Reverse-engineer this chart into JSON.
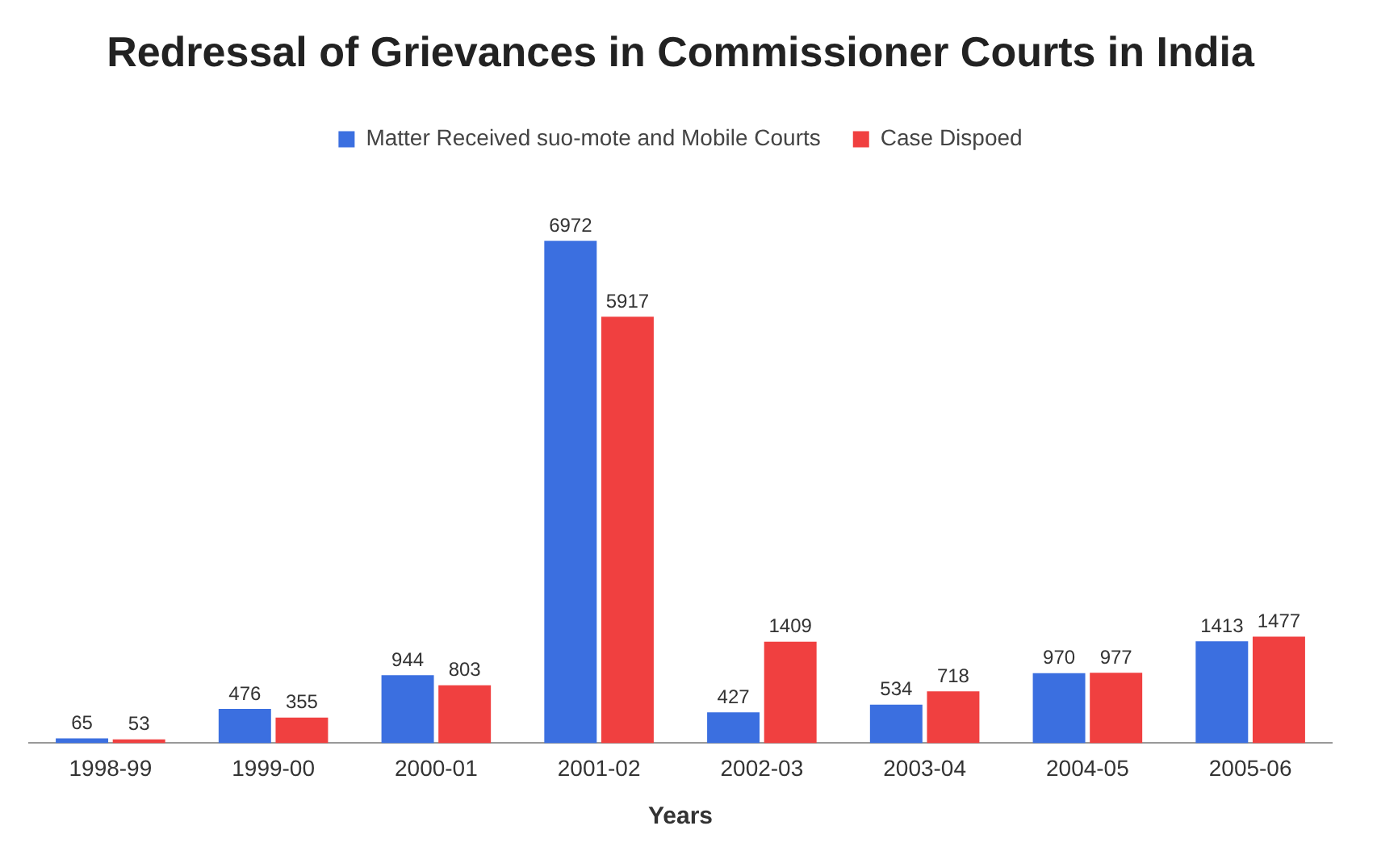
{
  "chart_data": {
    "type": "bar",
    "title": "Redressal of Grievances in Commissioner Courts in India",
    "xlabel": "Years",
    "categories": [
      "1998-99",
      "1999-00",
      "2000-01",
      "2001-02",
      "2002-03",
      "2003-04",
      "2004-05",
      "2005-06"
    ],
    "series": [
      {
        "name": "Matter Received suo-mote and Mobile Courts",
        "color": "#3b6fe0",
        "values": [
          65,
          476,
          944,
          6972,
          427,
          534,
          970,
          1413
        ]
      },
      {
        "name": "Case Dispoed",
        "color": "#f04040",
        "values": [
          53,
          355,
          803,
          5917,
          1409,
          718,
          977,
          1477
        ]
      }
    ],
    "data_labels": true,
    "legend": "top",
    "grid": false
  }
}
